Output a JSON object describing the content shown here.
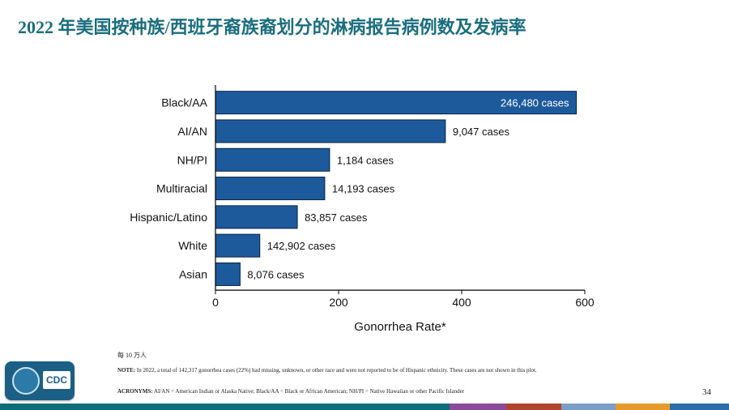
{
  "slide": {
    "title": "2022 年美国按种族/西班牙裔族裔划分的淋病报告病例数及发病率",
    "unit_note": "每 10 万人",
    "note_label": "NOTE:",
    "note_text": "In 2022, a total of 142,317 gonorrhea cases (22%) had missing, unknown, or other race and were not reported to be of Hispanic ethnicity. These cases are not shown in this plot.",
    "acronyms_label": "ACRONYMS:",
    "acronyms_text": "AI/AN = American Indian or Alaska Native; Black/AA = Black or African American; NH/PI = Native Hawaiian or other Pacific Islander",
    "page_number": "34",
    "logo_text": "CDC"
  },
  "chart_data": {
    "type": "bar",
    "orientation": "horizontal",
    "categories": [
      "Black/AA",
      "AI/AN",
      "NH/PI",
      "Multiracial",
      "Hispanic/Latino",
      "White",
      "Asian"
    ],
    "values": [
      586.2,
      373.5,
      185.4,
      177.5,
      133.0,
      72.0,
      40.0
    ],
    "data_labels": [
      "246,480 cases",
      "9,047 cases",
      "1,184 cases",
      "14,193 cases",
      "83,857 cases",
      "142,902 cases",
      "8,076 cases"
    ],
    "x_ticks": [
      "0",
      "200",
      "400",
      "600"
    ],
    "xlabel": "Gonorrhea Rate*",
    "xlim": [
      0,
      600
    ],
    "bar_color": "#1c5a9c",
    "grid": false
  },
  "colors": {
    "title": "#1a6e7e",
    "bottom_bar": [
      "#0d6e7a",
      "#0d6e7a",
      "#8a4b9a",
      "#b0442e",
      "#7a9fc7",
      "#e59b2b",
      "#2a6fa8"
    ]
  }
}
